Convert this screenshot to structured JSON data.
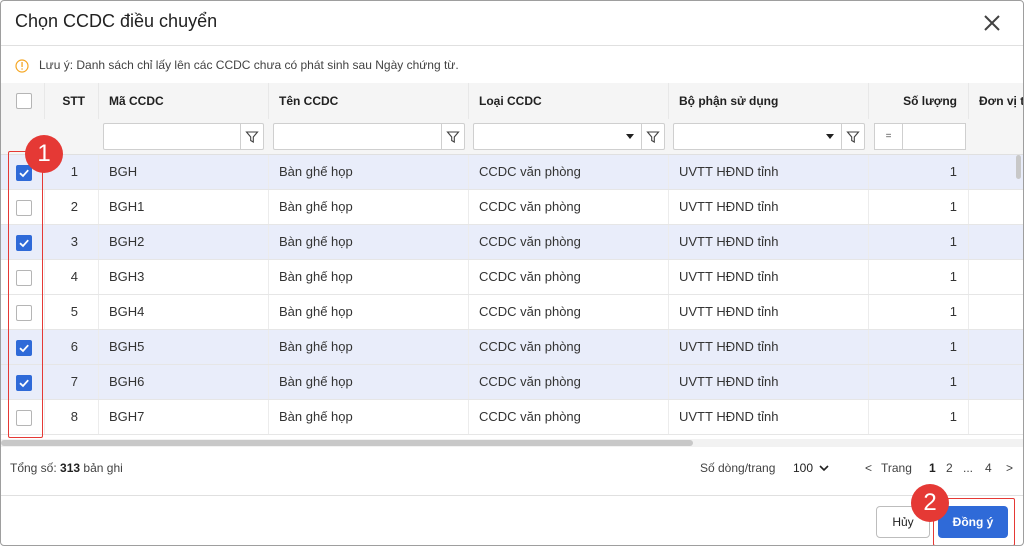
{
  "dialog": {
    "title": "Chọn CCDC điều chuyển",
    "note": "Lưu ý: Danh sách chỉ lấy lên các CCDC chưa có phát sinh sau Ngày chứng từ."
  },
  "table": {
    "columns": [
      "STT",
      "Mã CCDC",
      "Tên CCDC",
      "Loại CCDC",
      "Bộ phận sử dụng",
      "Số lượng",
      "Đơn vị t"
    ],
    "filter_operator": "=",
    "rows": [
      {
        "stt": "1",
        "code": "BGH",
        "name": "Bàn ghế họp",
        "type": "CCDC văn phòng",
        "dept": "UVTT HĐND tỉnh",
        "qty": "1",
        "checked": true
      },
      {
        "stt": "2",
        "code": "BGH1",
        "name": "Bàn ghế họp",
        "type": "CCDC văn phòng",
        "dept": "UVTT HĐND tỉnh",
        "qty": "1",
        "checked": false
      },
      {
        "stt": "3",
        "code": "BGH2",
        "name": "Bàn ghế họp",
        "type": "CCDC văn phòng",
        "dept": "UVTT HĐND tỉnh",
        "qty": "1",
        "checked": true
      },
      {
        "stt": "4",
        "code": "BGH3",
        "name": "Bàn ghế họp",
        "type": "CCDC văn phòng",
        "dept": "UVTT HĐND tỉnh",
        "qty": "1",
        "checked": false
      },
      {
        "stt": "5",
        "code": "BGH4",
        "name": "Bàn ghế họp",
        "type": "CCDC văn phòng",
        "dept": "UVTT HĐND tỉnh",
        "qty": "1",
        "checked": false
      },
      {
        "stt": "6",
        "code": "BGH5",
        "name": "Bàn ghế họp",
        "type": "CCDC văn phòng",
        "dept": "UVTT HĐND tỉnh",
        "qty": "1",
        "checked": true
      },
      {
        "stt": "7",
        "code": "BGH6",
        "name": "Bàn ghế họp",
        "type": "CCDC văn phòng",
        "dept": "UVTT HĐND tỉnh",
        "qty": "1",
        "checked": true
      },
      {
        "stt": "8",
        "code": "BGH7",
        "name": "Bàn ghế họp",
        "type": "CCDC văn phòng",
        "dept": "UVTT HĐND tỉnh",
        "qty": "1",
        "checked": false
      }
    ]
  },
  "footer": {
    "total_prefix": "Tổng số:",
    "total_count": "313",
    "total_suffix": "bản ghi",
    "rows_per_page_label": "Số dòng/trang",
    "rows_per_page_value": "100",
    "prev": "<",
    "page_label": "Trang",
    "pages": [
      "1",
      "2",
      "...",
      "4"
    ],
    "current_page": "1",
    "next": ">"
  },
  "actions": {
    "cancel": "Hủy",
    "ok": "Đồng ý"
  },
  "annotations": {
    "mark1": "1",
    "mark2": "2"
  },
  "colors": {
    "accent": "#2f6ad8",
    "selected_row": "#e9edfa",
    "annotation": "#e53935",
    "note_icon": "#f5a623"
  },
  "icons": {
    "close": "close-icon",
    "note": "info-icon",
    "filter": "filter-icon",
    "dropdown": "caret-down-icon",
    "checkbox": "checkbox-icon"
  }
}
